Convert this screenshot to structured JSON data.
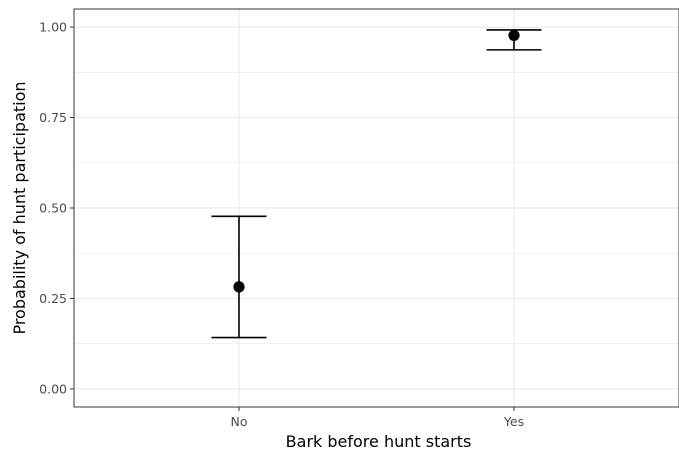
{
  "chart_data": {
    "type": "scatter",
    "subtype": "point-with-error-bars",
    "title": "",
    "xlabel": "Bark before hunt starts",
    "ylabel": "Probability of hunt participation",
    "categories": [
      "No",
      "Yes"
    ],
    "points": [
      {
        "category": "No",
        "y": 0.282,
        "lower": 0.142,
        "upper": 0.477
      },
      {
        "category": "Yes",
        "y": 0.977,
        "lower": 0.937,
        "upper": 0.992
      }
    ],
    "ylim": [
      -0.05,
      1.05
    ],
    "y_ticks": [
      0.0,
      0.25,
      0.5,
      0.75,
      1.0
    ],
    "y_tick_labels": [
      "0.00",
      "0.25",
      "0.50",
      "0.75",
      "1.00"
    ],
    "grid": true,
    "theme": "bw",
    "colors": {
      "points": "#000000",
      "grid": "#ebebeb",
      "border": "#333333"
    }
  }
}
